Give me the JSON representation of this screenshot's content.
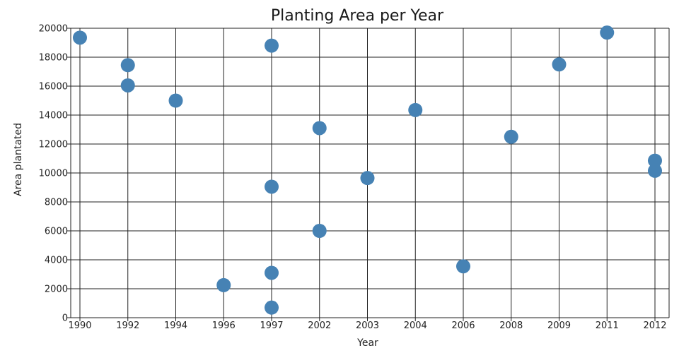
{
  "chart_data": {
    "type": "scatter",
    "title": "Planting Area per Year",
    "xlabel": "Year",
    "ylabel": "Area plantated",
    "x_categories": [
      "1990",
      "1992",
      "1994",
      "1996",
      "1997",
      "2002",
      "2003",
      "2004",
      "2006",
      "2008",
      "2009",
      "2011",
      "2012"
    ],
    "ylim": [
      0,
      20000
    ],
    "y_ticks": [
      "0",
      "2000",
      "4000",
      "6000",
      "8000",
      "10000",
      "12000",
      "14000",
      "16000",
      "18000",
      "20000"
    ],
    "grid": true,
    "point_color": "#4682b4",
    "points": [
      {
        "x": "1990",
        "y": 19350
      },
      {
        "x": "1992",
        "y": 17450
      },
      {
        "x": "1992",
        "y": 16050
      },
      {
        "x": "1994",
        "y": 15000
      },
      {
        "x": "1996",
        "y": 2250
      },
      {
        "x": "1997",
        "y": 18800
      },
      {
        "x": "1997",
        "y": 9050
      },
      {
        "x": "1997",
        "y": 3100
      },
      {
        "x": "1997",
        "y": 700
      },
      {
        "x": "2002",
        "y": 13100
      },
      {
        "x": "2002",
        "y": 6000
      },
      {
        "x": "2003",
        "y": 9650
      },
      {
        "x": "2004",
        "y": 14350
      },
      {
        "x": "2006",
        "y": 3550
      },
      {
        "x": "2008",
        "y": 12500
      },
      {
        "x": "2009",
        "y": 17500
      },
      {
        "x": "2011",
        "y": 19700
      },
      {
        "x": "2012",
        "y": 10850
      },
      {
        "x": "2012",
        "y": 10150
      }
    ]
  }
}
